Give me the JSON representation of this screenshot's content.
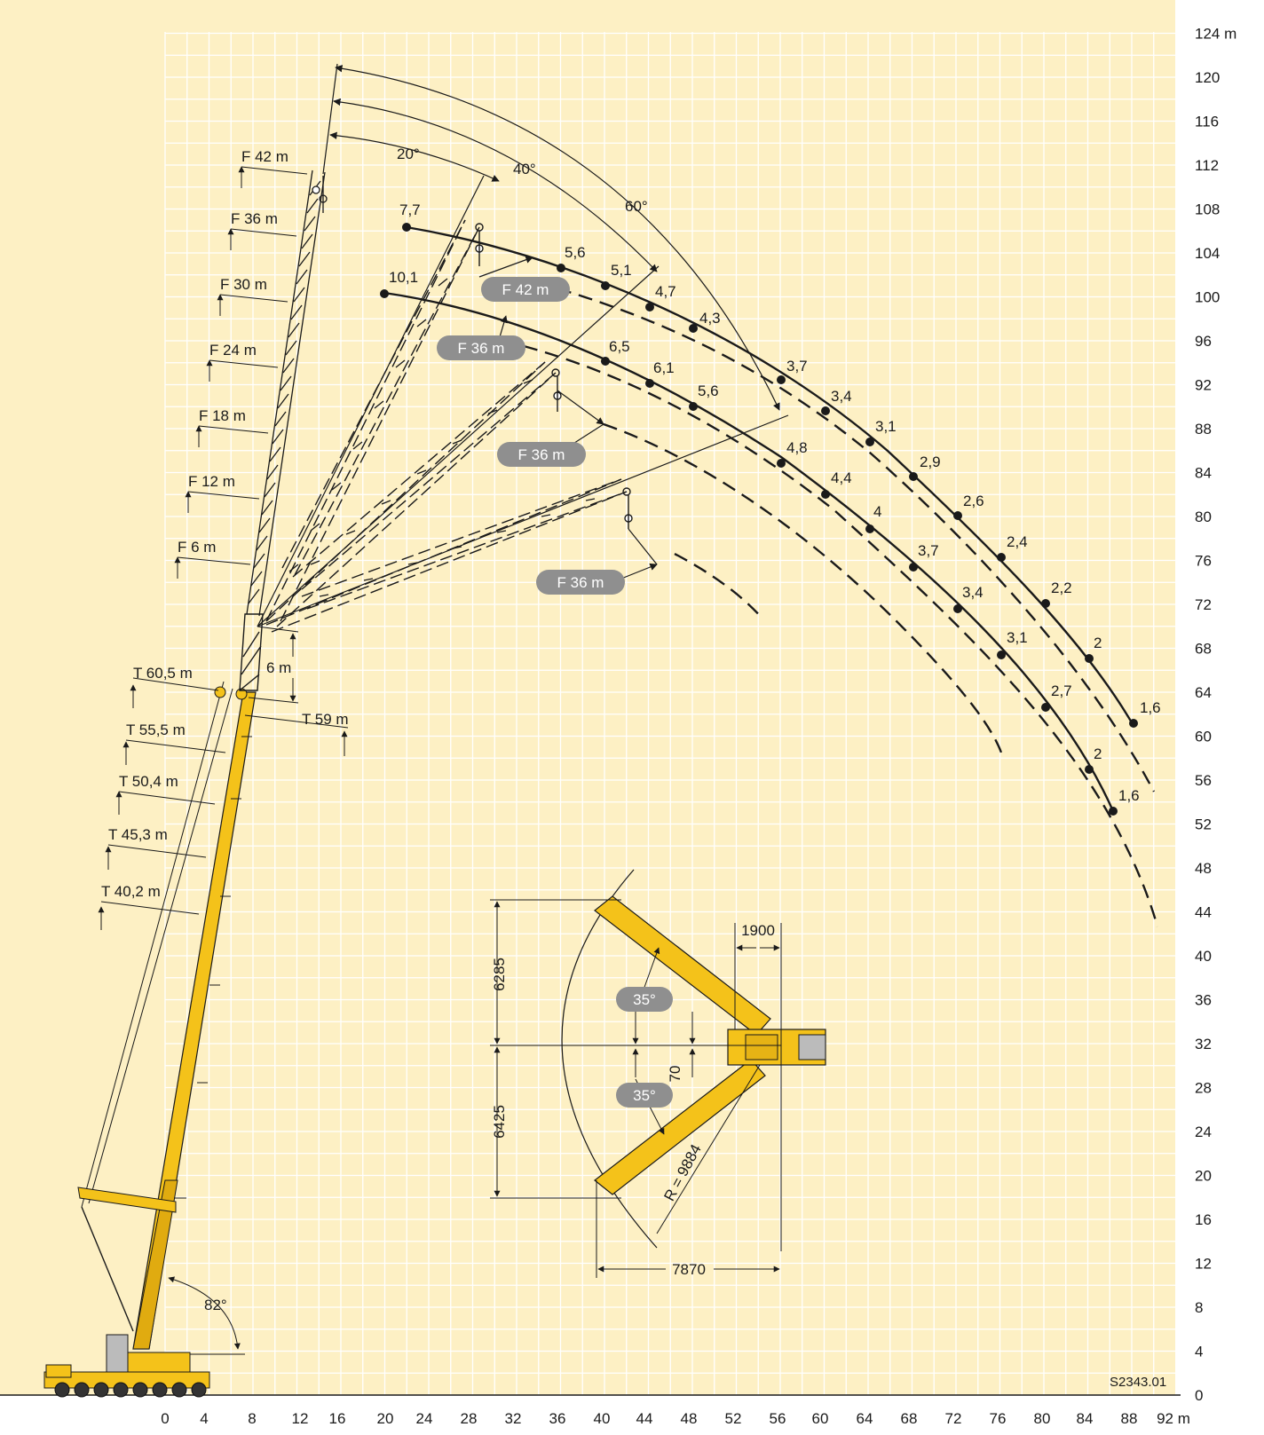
{
  "x_axis": {
    "unit": "m",
    "ticks": [
      "0",
      "4",
      "8",
      "12",
      "16",
      "20",
      "24",
      "28",
      "32",
      "36",
      "40",
      "44",
      "48",
      "52",
      "56",
      "60",
      "64",
      "68",
      "72",
      "76",
      "80",
      "84",
      "88",
      "92 m"
    ]
  },
  "y_axis": {
    "unit": "m",
    "ticks": [
      "0",
      "4",
      "8",
      "12",
      "16",
      "20",
      "24",
      "28",
      "32",
      "36",
      "40",
      "44",
      "48",
      "52",
      "56",
      "60",
      "64",
      "68",
      "72",
      "76",
      "80",
      "84",
      "88",
      "92",
      "96",
      "100",
      "104",
      "108",
      "112",
      "116",
      "120",
      "124 m"
    ]
  },
  "drawing_code": "S2343.01",
  "boom_angle": "82°",
  "luffing_angles": [
    "20°",
    "40°",
    "60°"
  ],
  "fly_jib_lengths": [
    "F 42 m",
    "F 36 m",
    "F 30 m",
    "F 24 m",
    "F 18 m",
    "F 12 m",
    "F 6 m"
  ],
  "telescope_lengths": [
    "T 60,5 m",
    "T 55,5 m",
    "T 50,4 m",
    "T 45,3 m",
    "T 40,2 m"
  ],
  "extension_label": "6 m",
  "t59_label": "T 59 m",
  "jib_pills": [
    "F 42 m",
    "F 36 m",
    "F 36 m",
    "F 36 m"
  ],
  "curve_f42_labels": [
    "7,7",
    "5,6",
    "5,1",
    "4,7",
    "4,3",
    "3,7",
    "3,4",
    "3,1",
    "2,9",
    "2,6",
    "2,4",
    "2,2",
    "2",
    "1,6"
  ],
  "curve_f36_labels": [
    "10,1",
    "6,5",
    "6,1",
    "5,6",
    "4,8",
    "4,4",
    "4",
    "3,7",
    "3,4",
    "3,1",
    "2,7",
    "2",
    "1,6"
  ],
  "outrigger": {
    "dim_top": "6285",
    "dim_bottom": "6425",
    "dim_width": "1900",
    "dim_base": "7870",
    "offset": "70",
    "radius": "R = 9884",
    "angle_top": "35°",
    "angle_bottom": "35°"
  },
  "colors": {
    "background": "#fdf0c4",
    "grid": "#ffffff",
    "crane_yellow": "#f4c21a",
    "pill": "#8f8f8f"
  }
}
